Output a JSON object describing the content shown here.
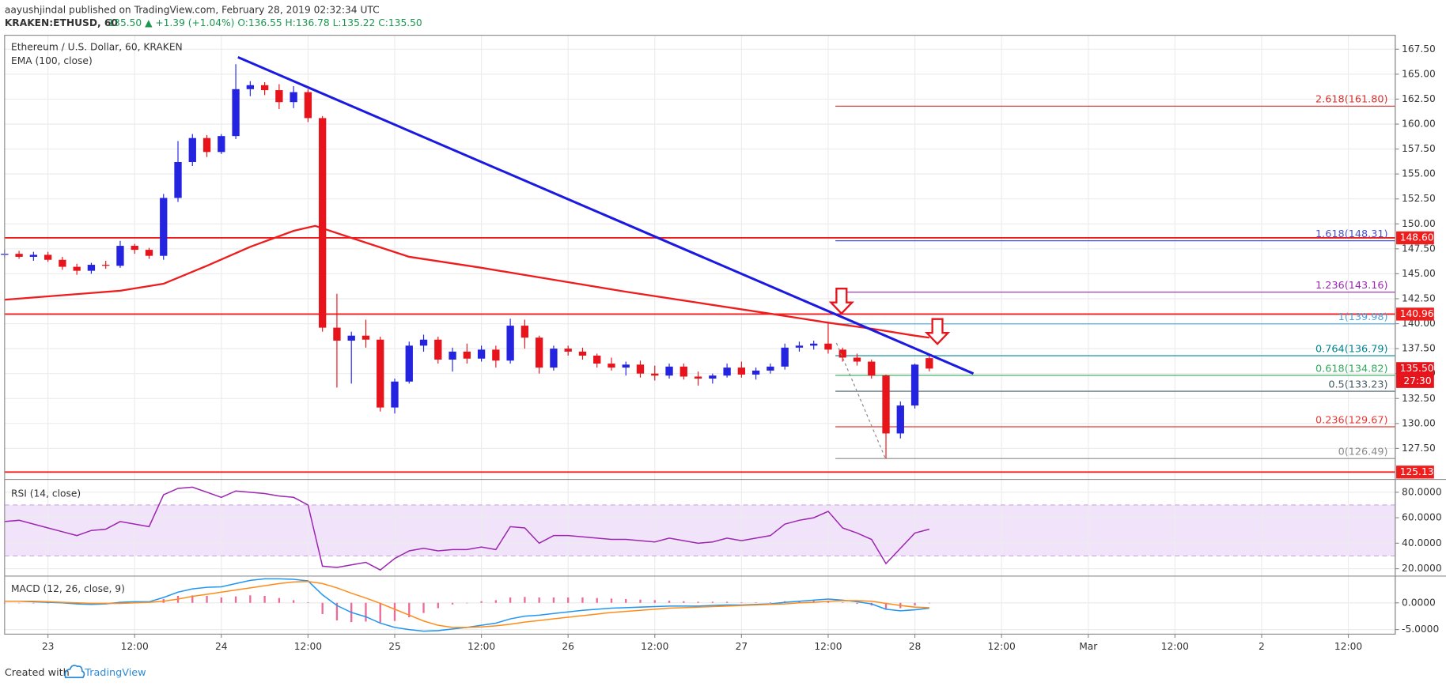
{
  "header": {
    "author_line": "aayushjindal published on TradingView.com, February 28, 2019 02:32:34 UTC",
    "symbol": "KRAKEN:ETHUSD, 60",
    "quote": "135.50 ▲ +1.39 (+1.04%) O:136.55 H:136.78 L:135.22 C:135.50"
  },
  "footer": {
    "created": "Created with",
    "brand": "TradingView"
  },
  "chart_data": [
    {
      "type": "candlestick",
      "title": "Ethereum / U.S. Dollar, 60, KRAKEN",
      "up_color": "#2424e0",
      "down_color": "#e8141b",
      "grid": true,
      "x": [
        -6,
        -4,
        -2,
        0,
        2,
        4,
        6,
        8,
        10,
        12,
        14,
        16,
        18,
        20,
        22,
        24,
        26,
        28,
        30,
        32,
        34,
        36,
        38,
        40,
        42,
        44,
        46,
        48,
        50,
        52,
        54,
        56,
        58,
        60,
        62,
        64,
        66,
        68,
        70,
        72,
        74,
        76,
        78,
        80,
        82,
        84,
        86,
        88,
        90,
        92,
        94,
        96,
        98,
        100,
        102,
        104,
        106,
        108,
        110,
        112,
        114,
        116,
        118,
        120,
        122
      ],
      "open": [
        146.9,
        147.0,
        146.7,
        146.9,
        146.4,
        145.7,
        145.3,
        145.9,
        145.8,
        147.8,
        147.4,
        146.8,
        152.6,
        156.2,
        158.6,
        157.2,
        158.8,
        163.5,
        163.9,
        163.4,
        162.2,
        163.2,
        160.6,
        139.6,
        138.3,
        138.8,
        138.4,
        131.6,
        134.2,
        137.8,
        138.4,
        136.4,
        137.2,
        136.5,
        137.4,
        136.3,
        139.8,
        138.6,
        135.6,
        137.5,
        137.2,
        136.8,
        136.0,
        135.6,
        135.9,
        135.0,
        134.8,
        135.7,
        134.7,
        134.5,
        134.8,
        135.6,
        134.9,
        135.3,
        135.7,
        137.6,
        137.8,
        138.0,
        137.4,
        136.6,
        136.2,
        134.8,
        129.0,
        131.8,
        136.55
      ],
      "high": [
        147.4,
        147.3,
        147.2,
        147.2,
        146.7,
        146.0,
        146.1,
        146.3,
        148.3,
        148.0,
        147.6,
        153.0,
        158.3,
        159.0,
        158.9,
        159.0,
        166.0,
        164.3,
        164.2,
        164.0,
        163.8,
        163.5,
        160.8,
        143.0,
        139.2,
        140.4,
        138.7,
        134.5,
        138.2,
        138.9,
        138.7,
        137.6,
        138.0,
        137.8,
        137.8,
        140.5,
        140.4,
        138.8,
        137.8,
        137.8,
        137.6,
        137.0,
        136.6,
        136.2,
        136.3,
        135.8,
        136.0,
        136.0,
        135.2,
        135.0,
        136.0,
        136.2,
        135.6,
        136.0,
        138.0,
        138.2,
        138.3,
        140.1,
        137.6,
        137.0,
        136.4,
        134.9,
        132.2,
        136.0,
        136.78
      ],
      "low": [
        146.6,
        146.5,
        146.3,
        146.2,
        145.4,
        144.9,
        145.0,
        145.5,
        145.6,
        147.0,
        146.5,
        146.4,
        152.2,
        155.8,
        156.7,
        157.0,
        158.5,
        162.8,
        162.9,
        161.5,
        161.6,
        160.2,
        139.2,
        133.6,
        134.0,
        137.6,
        131.2,
        131.0,
        134.0,
        137.2,
        136.0,
        135.2,
        136.0,
        136.2,
        135.6,
        136.0,
        137.5,
        135.0,
        135.3,
        136.8,
        136.4,
        135.6,
        135.3,
        134.8,
        134.6,
        134.3,
        134.5,
        134.4,
        133.8,
        134.0,
        134.6,
        134.6,
        134.4,
        135.0,
        135.4,
        137.2,
        137.4,
        137.0,
        136.2,
        135.8,
        134.5,
        126.5,
        128.5,
        131.5,
        135.22
      ],
      "close": [
        147.0,
        146.7,
        146.9,
        146.4,
        145.7,
        145.3,
        145.9,
        145.8,
        147.8,
        147.4,
        146.8,
        152.6,
        156.2,
        158.6,
        157.2,
        158.8,
        163.5,
        163.9,
        163.4,
        162.2,
        163.2,
        160.6,
        139.6,
        138.3,
        138.8,
        138.4,
        131.6,
        134.2,
        137.8,
        138.4,
        136.4,
        137.2,
        136.5,
        137.4,
        136.3,
        139.8,
        138.6,
        135.6,
        137.5,
        137.2,
        136.8,
        136.0,
        135.6,
        135.9,
        135.0,
        134.8,
        135.7,
        134.7,
        134.5,
        134.8,
        135.6,
        134.9,
        135.3,
        135.7,
        137.6,
        137.8,
        138.0,
        137.4,
        136.6,
        136.2,
        134.8,
        129.0,
        131.8,
        135.9,
        135.5
      ],
      "xlim": [
        -6,
        186.5
      ],
      "xticks": [
        {
          "value": 0,
          "label": "23"
        },
        {
          "value": 12,
          "label": "12:00"
        },
        {
          "value": 24,
          "label": "24"
        },
        {
          "value": 36,
          "label": "12:00"
        },
        {
          "value": 48,
          "label": "25"
        },
        {
          "value": 60,
          "label": "12:00"
        },
        {
          "value": 72,
          "label": "26"
        },
        {
          "value": 84,
          "label": "12:00"
        },
        {
          "value": 96,
          "label": "27"
        },
        {
          "value": 108,
          "label": "12:00"
        },
        {
          "value": 120,
          "label": "28"
        },
        {
          "value": 132,
          "label": "12:00"
        },
        {
          "value": 144,
          "label": "Mar"
        },
        {
          "value": 156,
          "label": "12:00"
        },
        {
          "value": 168,
          "label": "2"
        },
        {
          "value": 180,
          "label": "12:00"
        }
      ],
      "ylim": [
        124.4,
        168.9
      ],
      "yticks": [
        {
          "value": 127.5,
          "label": "127.50"
        },
        {
          "value": 130,
          "label": "130.00"
        },
        {
          "value": 132.5,
          "label": "132.50"
        },
        {
          "value": 135,
          "label": "135.00"
        },
        {
          "value": 137.5,
          "label": "137.50"
        },
        {
          "value": 140,
          "label": "140.00"
        },
        {
          "value": 142.5,
          "label": "142.50"
        },
        {
          "value": 145,
          "label": "145.00"
        },
        {
          "value": 147.5,
          "label": "147.50"
        },
        {
          "value": 150,
          "label": "150.00"
        },
        {
          "value": 152.5,
          "label": "152.50"
        },
        {
          "value": 155,
          "label": "155.00"
        },
        {
          "value": 157.5,
          "label": "157.50"
        },
        {
          "value": 160,
          "label": "160.00"
        },
        {
          "value": 162.5,
          "label": "162.50"
        },
        {
          "value": 165,
          "label": "165.00"
        },
        {
          "value": 167.5,
          "label": "167.50"
        }
      ],
      "overlays": [
        {
          "name": "EMA (100, close)",
          "color": "#ee1c1c",
          "x": [
            -6,
            10,
            16,
            22,
            28,
            34,
            37,
            42,
            50,
            60,
            70,
            80,
            90,
            100,
            108,
            114,
            120,
            122
          ],
          "values": [
            142.4,
            143.3,
            144.0,
            145.8,
            147.7,
            149.3,
            149.8,
            148.6,
            146.7,
            145.6,
            144.4,
            143.2,
            142.1,
            141.0,
            140.1,
            139.5,
            138.8,
            138.6
          ]
        }
      ],
      "trendline": {
        "color": "#1a1ae0",
        "x": [
          26.3,
          128.1
        ],
        "values": [
          166.7,
          135.0
        ]
      },
      "levels": [
        {
          "value": 148.6,
          "label": "148.60"
        },
        {
          "value": 140.96,
          "label": "140.96"
        },
        {
          "value": 125.13,
          "label": "125.13"
        }
      ],
      "level_color": "#f01d1d",
      "fib": {
        "x_start": 109,
        "levels": [
          {
            "value": 161.8,
            "label": "2.618(161.80)",
            "color": "#d32f2f"
          },
          {
            "value": 148.31,
            "label": "1.618(148.31)",
            "color": "#4a52c8"
          },
          {
            "value": 143.16,
            "label": "1.236(143.16)",
            "color": "#9c27b0"
          },
          {
            "value": 139.98,
            "label": "1(139.98)",
            "color": "#4aa3df"
          },
          {
            "value": 136.79,
            "label": "0.764(136.79)",
            "color": "#00838f"
          },
          {
            "value": 134.82,
            "label": "0.618(134.82)",
            "color": "#2eaa5b"
          },
          {
            "value": 133.23,
            "label": "0.5(133.23)",
            "color": "#455a64"
          },
          {
            "value": 129.67,
            "label": "0.236(129.67)",
            "color": "#e53935"
          },
          {
            "value": 126.49,
            "label": "0(126.49)",
            "color": "#8a8a8a"
          }
        ]
      },
      "last": {
        "value": 135.5,
        "label": "135.50",
        "countdown": "27:30",
        "color": "#e8141b"
      }
    },
    {
      "type": "line",
      "title": "RSI (14, close)",
      "color": "#9c27b0",
      "grid": true,
      "values": [
        57,
        58,
        55,
        52,
        49,
        46,
        50,
        51,
        57,
        55,
        53,
        78,
        83,
        84,
        80,
        76,
        81,
        80,
        79,
        77,
        76,
        70,
        22,
        21,
        23,
        25,
        19,
        28,
        34,
        36,
        34,
        35,
        35,
        37,
        35,
        53,
        52,
        40,
        46,
        46,
        45,
        44,
        43,
        43,
        42,
        41,
        44,
        42,
        40,
        41,
        44,
        42,
        44,
        46,
        55,
        58,
        60,
        65,
        52,
        48,
        43,
        24,
        36,
        48,
        51
      ],
      "band": [
        30,
        70
      ],
      "band_color": "#f1e4fa",
      "ylim": [
        14.2,
        90.1
      ],
      "yticks": [
        {
          "value": 20,
          "label": "20.0000"
        },
        {
          "value": 40,
          "label": "40.0000"
        },
        {
          "value": 60,
          "label": "60.0000"
        },
        {
          "value": 80,
          "label": "80.0000"
        }
      ]
    },
    {
      "type": "macd",
      "title": "MACD (12, 26, close, 9)",
      "grid": true,
      "macd": {
        "color": "#2196f3",
        "values": [
          0.3,
          0.3,
          0.2,
          0.1,
          0,
          -0.2,
          -0.3,
          -0.2,
          0.1,
          0.2,
          0.2,
          1.0,
          2.0,
          2.6,
          2.9,
          3.0,
          3.6,
          4.2,
          4.5,
          4.5,
          4.4,
          4.1,
          1.5,
          -0.5,
          -1.8,
          -2.6,
          -3.8,
          -4.6,
          -5.0,
          -5.3,
          -5.2,
          -4.9,
          -4.6,
          -4.2,
          -3.8,
          -3.0,
          -2.5,
          -2.3,
          -2.0,
          -1.7,
          -1.4,
          -1.2,
          -1.0,
          -0.9,
          -0.8,
          -0.7,
          -0.6,
          -0.6,
          -0.6,
          -0.5,
          -0.4,
          -0.4,
          -0.3,
          -0.2,
          0.1,
          0.3,
          0.5,
          0.7,
          0.5,
          0.2,
          -0.2,
          -1.2,
          -1.5,
          -1.3,
          -1.0
        ]
      },
      "signal": {
        "color": "#ff8c1a",
        "values": [
          0.3,
          0.3,
          0.3,
          0.2,
          0.1,
          0,
          -0.1,
          -0.1,
          -0.1,
          0,
          0.1,
          0.3,
          0.7,
          1.2,
          1.6,
          2.0,
          2.4,
          2.8,
          3.2,
          3.6,
          3.9,
          4.0,
          3.6,
          2.8,
          1.8,
          0.9,
          -0.1,
          -1.2,
          -2.3,
          -3.4,
          -4.2,
          -4.6,
          -4.6,
          -4.5,
          -4.3,
          -4.0,
          -3.6,
          -3.3,
          -3.0,
          -2.7,
          -2.4,
          -2.1,
          -1.8,
          -1.6,
          -1.4,
          -1.2,
          -1.0,
          -0.9,
          -0.8,
          -0.7,
          -0.6,
          -0.5,
          -0.4,
          -0.3,
          -0.2,
          0,
          0.1,
          0.3,
          0.4,
          0.4,
          0.3,
          -0.1,
          -0.5,
          -0.8,
          -0.9
        ]
      },
      "histogram": {
        "color": "#ec6a9a",
        "values": [
          0,
          0,
          -0.1,
          -0.1,
          -0.1,
          -0.2,
          -0.2,
          -0.1,
          0.2,
          0.2,
          0.1,
          0.7,
          1.3,
          1.4,
          1.3,
          1.0,
          1.2,
          1.4,
          1.3,
          0.9,
          0.5,
          0.1,
          -2.1,
          -3.3,
          -3.6,
          -3.5,
          -3.7,
          -3.4,
          -2.7,
          -1.9,
          -1.0,
          -0.3,
          0,
          0.3,
          0.5,
          1.0,
          1.1,
          1.0,
          1.0,
          1.0,
          1.0,
          0.9,
          0.8,
          0.7,
          0.6,
          0.5,
          0.4,
          0.3,
          0.2,
          0.2,
          0.2,
          0.1,
          0.1,
          0.1,
          0.3,
          0.3,
          0.4,
          0.4,
          0.1,
          -0.2,
          -0.5,
          -1.1,
          -1.0,
          -0.5,
          -0.1
        ]
      },
      "ylim": [
        -5.86,
        5.0
      ],
      "yticks": [
        {
          "value": -5,
          "label": "-5.0000"
        },
        {
          "value": 0,
          "label": "0.0000"
        }
      ]
    }
  ]
}
